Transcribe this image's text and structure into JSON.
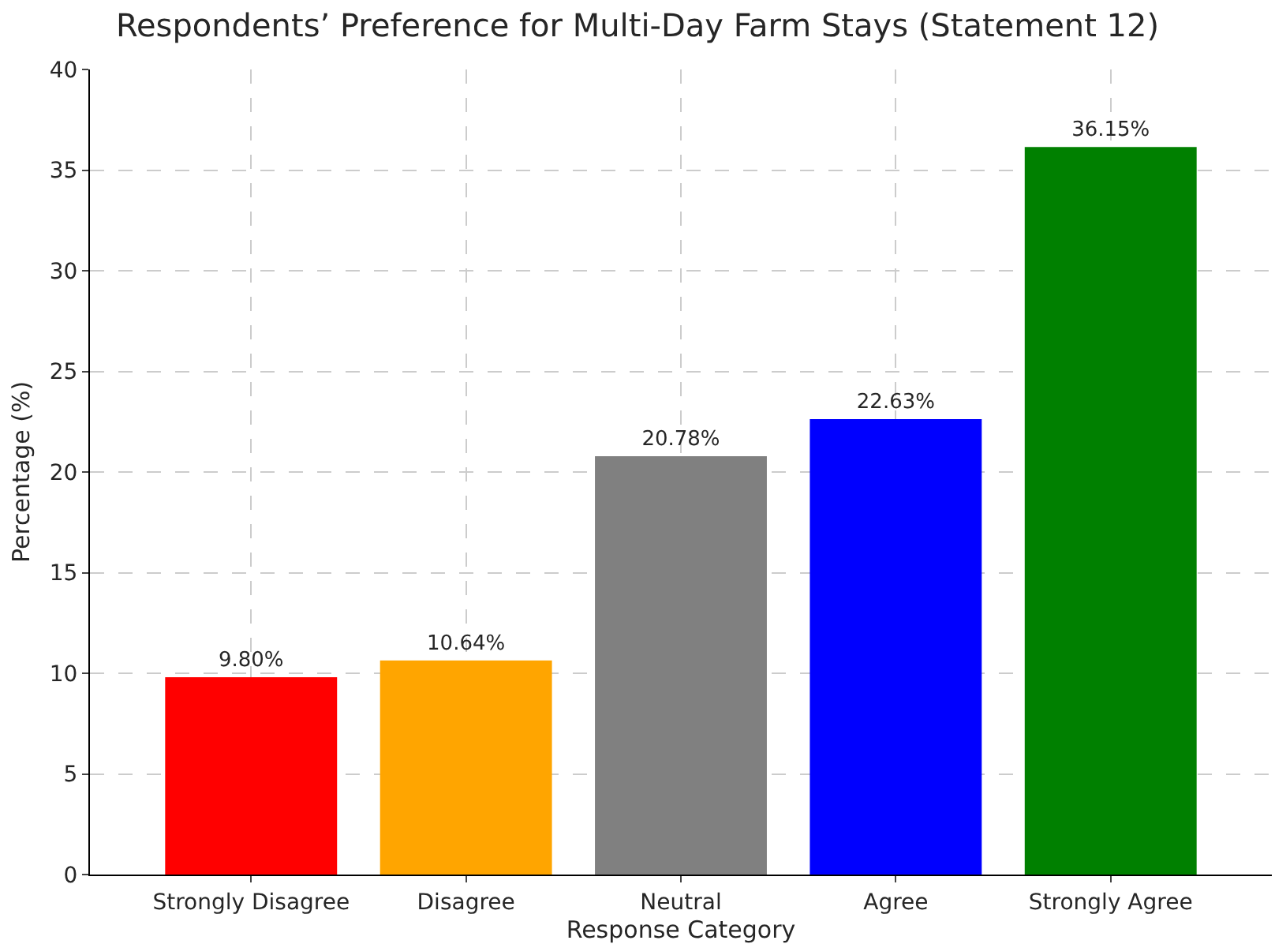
{
  "chart_data": {
    "type": "bar",
    "title": "Respondents’ Preference for Multi-Day Farm Stays (Statement 12)",
    "xlabel": "Response Category",
    "ylabel": "Percentage (%)",
    "categories": [
      "Strongly Disagree",
      "Disagree",
      "Neutral",
      "Agree",
      "Strongly Agree"
    ],
    "values": [
      9.8,
      10.64,
      20.78,
      22.63,
      36.15
    ],
    "colors": [
      "#ff0000",
      "#ffa500",
      "#808080",
      "#0000ff",
      "#008000"
    ],
    "value_labels": [
      "9.80%",
      "10.64%",
      "20.78%",
      "22.63%",
      "36.15%"
    ],
    "ylim": [
      0,
      40
    ],
    "yticks": [
      0,
      5,
      10,
      15,
      20,
      25,
      30,
      35,
      40
    ],
    "grid": true
  }
}
